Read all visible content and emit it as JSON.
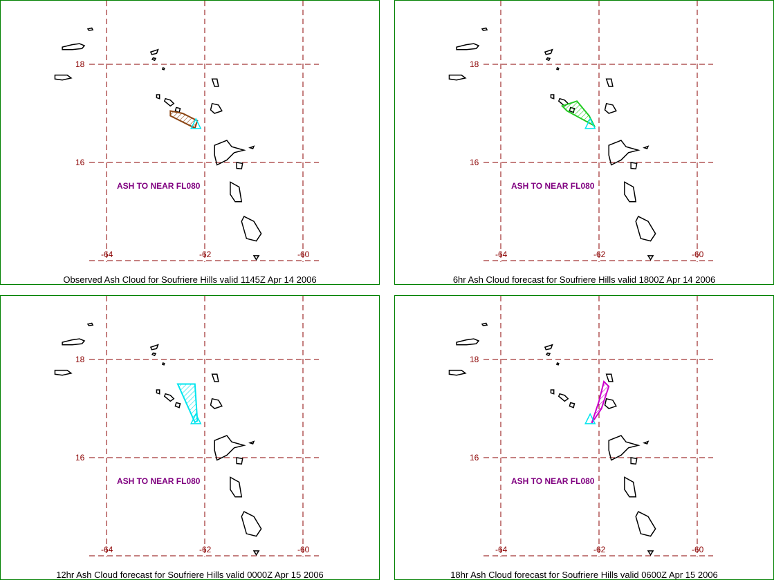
{
  "panels": [
    {
      "caption": "Observed Ash Cloud for Soufriere  Hills valid 1145Z Apr 14 2006",
      "ash_label": "ASH TO NEAR FL080",
      "cloud_color": "#8b4513",
      "cloud_polygon": [
        [
          -62.7,
          17.05
        ],
        [
          -62.45,
          17.0
        ],
        [
          -62.15,
          16.85
        ],
        [
          -62.2,
          16.7
        ],
        [
          -62.7,
          16.95
        ]
      ]
    },
    {
      "caption": "6hr Ash Cloud forecast for Soufriere  Hills valid 1800Z Apr 14 2006",
      "ash_label": "ASH TO NEAR FL080",
      "cloud_color": "#22cc22",
      "cloud_polygon": [
        [
          -62.75,
          17.15
        ],
        [
          -62.45,
          17.25
        ],
        [
          -62.2,
          16.95
        ],
        [
          -62.1,
          16.75
        ],
        [
          -62.65,
          17.05
        ]
      ]
    },
    {
      "caption": "12hr Ash Cloud forecast for Soufriere  Hills valid 0000Z Apr 15 2006",
      "ash_label": "ASH TO NEAR FL080",
      "cloud_color": "#00e5ee",
      "cloud_polygon": [
        [
          -62.55,
          17.5
        ],
        [
          -62.2,
          17.5
        ],
        [
          -62.15,
          16.75
        ],
        [
          -62.2,
          16.72
        ]
      ]
    },
    {
      "caption": "18hr Ash Cloud forecast for Soufriere  Hills valid 0600Z Apr 15 2006",
      "ash_label": "ASH TO NEAR FL080",
      "cloud_color": "#cc00cc",
      "cloud_polygon": [
        [
          -61.9,
          17.55
        ],
        [
          -61.8,
          17.45
        ],
        [
          -61.95,
          17.0
        ],
        [
          -62.15,
          16.7
        ],
        [
          -62.1,
          16.85
        ],
        [
          -62.0,
          17.15
        ]
      ]
    }
  ],
  "lat_ticks": [
    "18",
    "16"
  ],
  "lon_ticks": [
    "-64",
    "-62",
    "-60"
  ],
  "grid_lat": [
    18,
    16,
    14
  ],
  "grid_lon": [
    -64,
    -62,
    -60
  ],
  "volcano": {
    "lon": -62.18,
    "lat": 16.72,
    "color": "#00e5ee"
  },
  "colors": {
    "border": "#008000",
    "grid": "#8b0000",
    "ash_label": "#800080",
    "coast": "#000000"
  }
}
